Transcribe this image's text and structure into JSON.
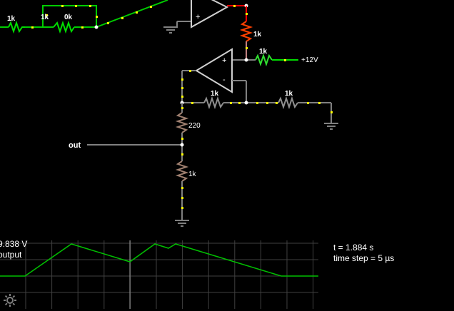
{
  "circuit": {
    "labels": {
      "r_top_left": "1k",
      "r_top_mid_a": "1k",
      "r_top_mid_b": "0k",
      "r_vertical_red": "1k",
      "r_to_supply": "1k",
      "supply": "+12V",
      "r_feedback_left": "1k",
      "r_feedback_right": "1k",
      "r_220": "220",
      "r_bottom": "1k",
      "out_label": "out",
      "opamp_plus": "+",
      "opamp_minus": "-"
    }
  },
  "scope": {
    "value_text": "9.838 V",
    "channel_text": "output"
  },
  "sim": {
    "time_text": "t = 1.884 s",
    "step_text": "time step = 5 µs"
  },
  "icons": {
    "settings": "gear-icon"
  },
  "colors": {
    "wire": "#808080",
    "wire_active": "#00cc00",
    "current_dot": "#ffff00",
    "high_voltage": "#ff0000",
    "scope_grid": "#404040",
    "scope_trace": "#00c000"
  }
}
